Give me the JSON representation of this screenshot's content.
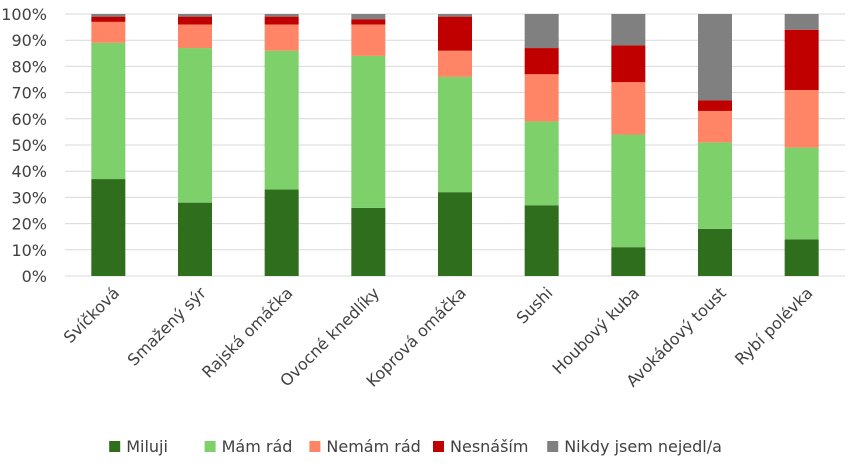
{
  "chart_data": {
    "type": "bar",
    "stacked": true,
    "percent": true,
    "categories": [
      "Svíčková",
      "Smažený sýr",
      "Rajská omáčka",
      "Ovocné knedlíky",
      "Koprová omáčka",
      "Sushi",
      "Houbový kuba",
      "Avokádový toust",
      "Rybí polévka"
    ],
    "series": [
      {
        "name": "Miluji",
        "color": "#2e6e1c",
        "values": [
          37,
          28,
          33,
          26,
          32,
          27,
          11,
          18,
          14
        ]
      },
      {
        "name": "Mám rád",
        "color": "#7ed06b",
        "values": [
          52,
          59,
          53,
          58,
          44,
          32,
          43,
          33,
          35
        ]
      },
      {
        "name": "Nemám rád",
        "color": "#ff8566",
        "values": [
          8,
          9,
          10,
          12,
          10,
          18,
          20,
          12,
          22
        ]
      },
      {
        "name": "Nesnáším",
        "color": "#c00000",
        "values": [
          2,
          3,
          3,
          2,
          13,
          10,
          14,
          4,
          23
        ]
      },
      {
        "name": "Nikdy jsem nejedl/a",
        "color": "#808080",
        "values": [
          1,
          1,
          1,
          2,
          1,
          13,
          12,
          33,
          6
        ]
      }
    ],
    "yticks": [
      "0%",
      "10%",
      "20%",
      "30%",
      "40%",
      "50%",
      "60%",
      "70%",
      "80%",
      "90%",
      "100%"
    ],
    "ylim": [
      0,
      100
    ],
    "grid": true,
    "legend_position": "bottom"
  }
}
